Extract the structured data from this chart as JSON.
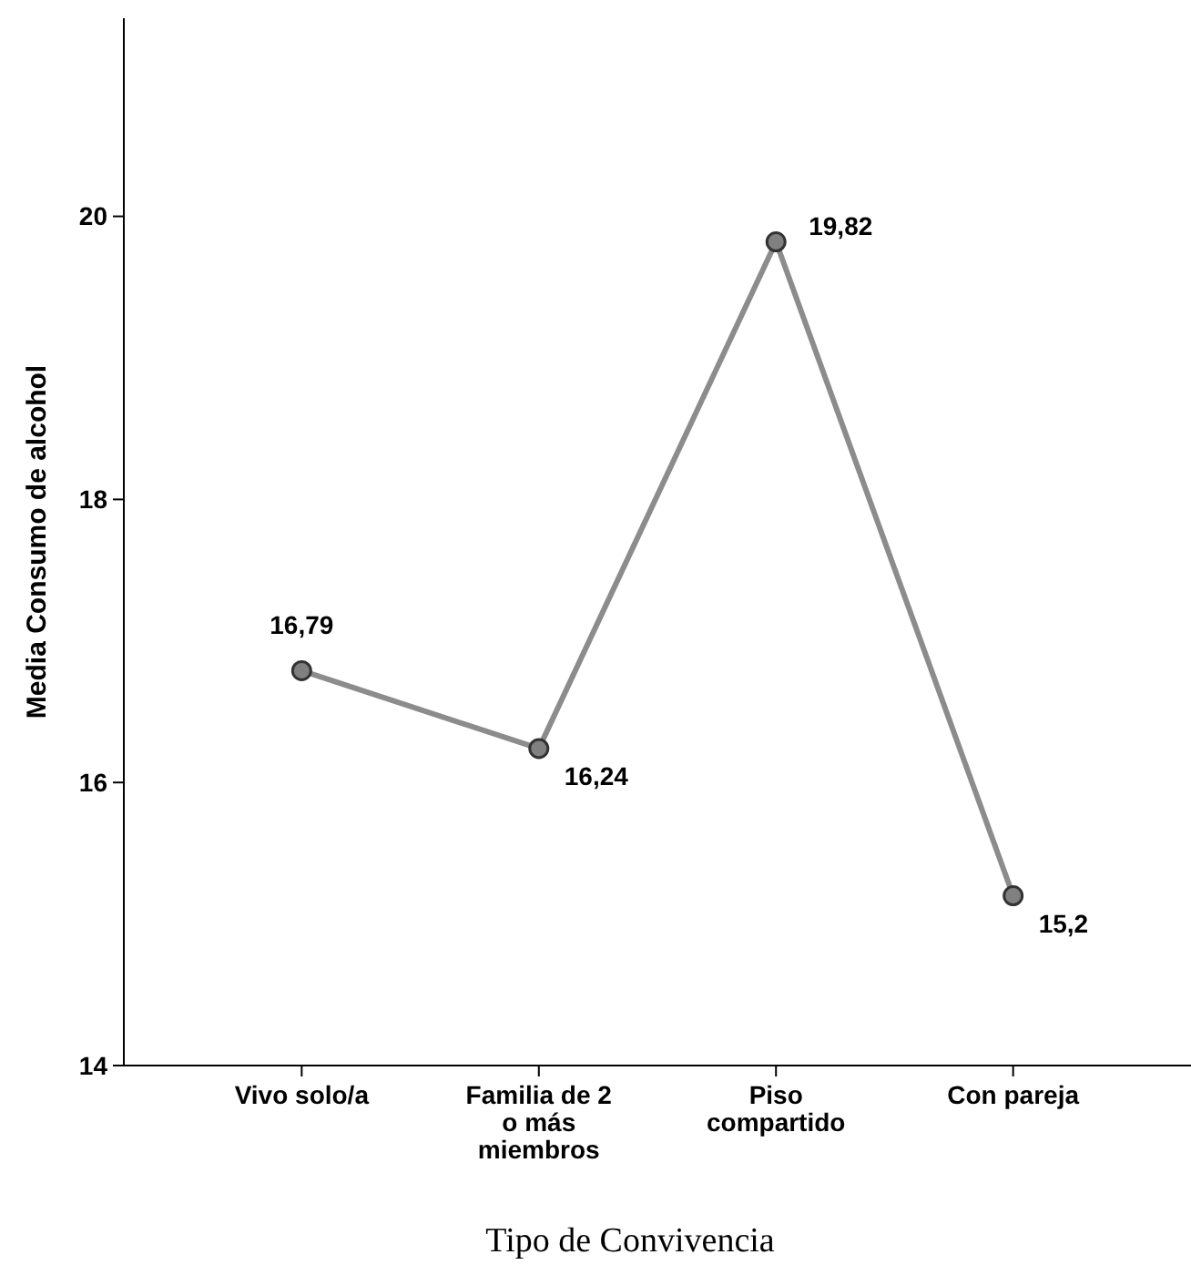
{
  "chart_data": {
    "type": "line",
    "xlabel": "Tipo de Convivencia",
    "ylabel": "Media Consumo de alcohol",
    "categories": [
      "Vivo solo/a",
      "Familia de 2\no más\nmiembros",
      "Piso\ncompartido",
      "Con pareja"
    ],
    "series": [
      {
        "color": "#8c8c8c",
        "values": [
          16.79,
          16.24,
          19.82,
          15.2
        ],
        "value_labels": [
          "16,79",
          "16,24",
          "19,82",
          "15,2"
        ]
      }
    ],
    "ylim": [
      14,
      21.4
    ],
    "yticks": [
      14,
      16,
      18,
      20
    ],
    "grid": false,
    "marker": "circle",
    "line_style": "solid"
  }
}
